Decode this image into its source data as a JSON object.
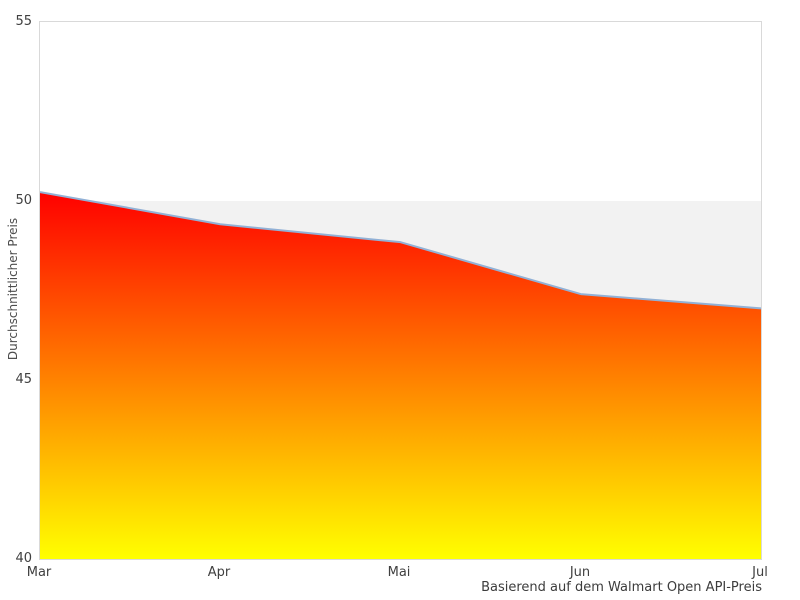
{
  "chart_data": {
    "type": "area",
    "title": "",
    "categories": [
      "Mar",
      "Apr",
      "Mai",
      "Jun",
      "Jul"
    ],
    "values": [
      50.25,
      49.35,
      48.85,
      47.4,
      47.0
    ],
    "xlabel": "",
    "ylabel": "Durchschnittlicher Preis",
    "caption": "Basierend auf dem Walmart Open API-Preis",
    "ylim": [
      40,
      55
    ],
    "ytick_labels": [
      "55",
      "50",
      "45",
      "40"
    ],
    "ytick_values": [
      55,
      50,
      45,
      40
    ],
    "grid": "alternating-horizontal-bands",
    "legend": "none",
    "colors": {
      "area_gradient_top": "#ff0000",
      "area_gradient_bottom": "#ffff00",
      "line": "#92b1d6",
      "band": "#f2f2f2",
      "band_alt": "#ffffff",
      "plot_border": "#d9d9d9",
      "label_text": "#404040",
      "background": "#ffffff"
    }
  }
}
